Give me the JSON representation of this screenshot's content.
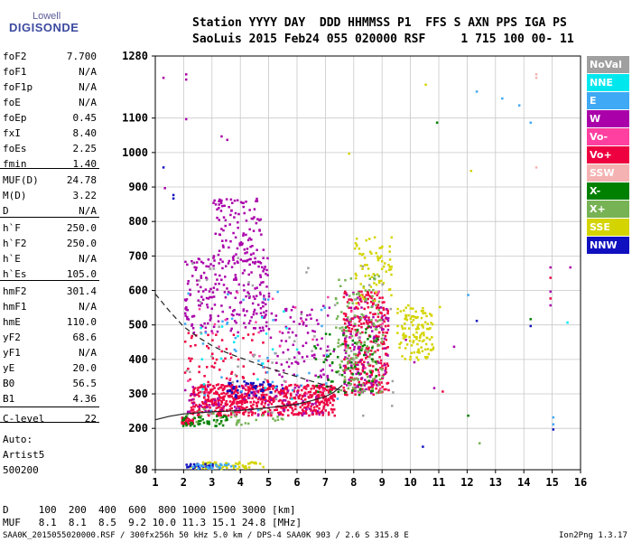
{
  "logo": {
    "line1": "Lowell",
    "line2": "DIGISONDE"
  },
  "header": {
    "line1": "Station YYYY DAY  DDD HHMMSS P1  FFS S AXN PPS IGA PS",
    "line2": "SaoLuis 2015 Feb24 055 020000 RSF     1 715 100 00- 11"
  },
  "params_group1": [
    {
      "k": "foF2",
      "v": "7.700"
    },
    {
      "k": "foF1",
      "v": "N/A"
    },
    {
      "k": "foF1p",
      "v": "N/A"
    },
    {
      "k": "foE",
      "v": "N/A"
    },
    {
      "k": "foEp",
      "v": "0.45"
    },
    {
      "k": "fxI",
      "v": "8.40"
    },
    {
      "k": "foEs",
      "v": "2.25"
    },
    {
      "k": "fmin",
      "v": "1.40"
    }
  ],
  "params_group2": [
    {
      "k": "MUF(D)",
      "v": "24.78"
    },
    {
      "k": "M(D)",
      "v": "3.22"
    },
    {
      "k": "D",
      "v": "N/A"
    }
  ],
  "params_group3": [
    {
      "k": "h`F",
      "v": "250.0"
    },
    {
      "k": "h`F2",
      "v": "250.0"
    },
    {
      "k": "h`E",
      "v": "N/A"
    },
    {
      "k": "h`Es",
      "v": "105.0"
    }
  ],
  "params_group4": [
    {
      "k": "hmF2",
      "v": "301.4"
    },
    {
      "k": "hmF1",
      "v": "N/A"
    },
    {
      "k": "hmE",
      "v": "110.0"
    },
    {
      "k": "yF2",
      "v": "68.6"
    },
    {
      "k": "yF1",
      "v": "N/A"
    },
    {
      "k": "yE",
      "v": "20.0"
    },
    {
      "k": "B0",
      "v": "56.5"
    },
    {
      "k": "B1",
      "v": "4.36"
    }
  ],
  "clevel": {
    "k": "C-level",
    "v": "22"
  },
  "auto": {
    "line1": "Auto:",
    "line2": "Artist5",
    "line3": "500200"
  },
  "legend": [
    {
      "label": "NoVal",
      "color": "#a0a0a0"
    },
    {
      "label": "NNE",
      "color": "#00e8ee"
    },
    {
      "label": "E",
      "color": "#3fa9f5"
    },
    {
      "label": "W",
      "color": "#aa00aa"
    },
    {
      "label": "Vo-",
      "color": "#ff40a0"
    },
    {
      "label": "Vo+",
      "color": "#ee0040"
    },
    {
      "label": "SSW",
      "color": "#f5b2b2"
    },
    {
      "label": "X-",
      "color": "#008000"
    },
    {
      "label": "X+",
      "color": "#77b355"
    },
    {
      "label": "SSE",
      "color": "#d4d400"
    },
    {
      "label": "NNW",
      "color": "#1010c0"
    }
  ],
  "footer": {
    "d_line": "D     100  200  400  600  800 1000 1500 3000 [km]",
    "muf_line": "MUF   8.1  8.1  8.5  9.2 10.0 11.3 15.1 24.8 [MHz]",
    "info": "SAA0K_2015055020000.RSF / 300fx256h 50 kHz 5.0 km / DPS-4 SAA0K 903 / 2.6 S 315.8 E",
    "version": "Ion2Png 1.3.17"
  },
  "chart_data": {
    "type": "scatter",
    "title": "",
    "xlabel": "",
    "ylabel": "",
    "xlim": [
      1,
      16
    ],
    "ylim": [
      80,
      1280
    ],
    "xticks": [
      "1",
      "2",
      "3",
      "4",
      "5",
      "6",
      "7",
      "8",
      "9",
      "10",
      "11",
      "12",
      "13",
      "14",
      "15",
      "16"
    ],
    "yticks": [
      "80",
      "200",
      "300",
      "400",
      "500",
      "600",
      "700",
      "800",
      "900",
      "1000",
      "1100",
      "1280"
    ],
    "grid": true,
    "legend_position": "right",
    "series": [
      {
        "name": "Vo+",
        "color": "#ee0040",
        "clusters": [
          {
            "x": [
              2.2,
              7.3
            ],
            "y": [
              240,
              330
            ],
            "n": 650
          },
          {
            "x": [
              7.6,
              9.2
            ],
            "y": [
              300,
              600
            ],
            "n": 300
          },
          {
            "x": [
              2.0,
              5.0
            ],
            "y": [
              330,
              480
            ],
            "n": 60
          },
          {
            "x": [
              1.9,
              2.3
            ],
            "y": [
              215,
              235
            ],
            "n": 30
          }
        ]
      },
      {
        "name": "W",
        "color": "#aa00aa",
        "clusters": [
          {
            "x": [
              2.0,
              5.0
            ],
            "y": [
              480,
              700
            ],
            "n": 220
          },
          {
            "x": [
              3.0,
              4.8
            ],
            "y": [
              680,
              870
            ],
            "n": 110
          },
          {
            "x": [
              5.0,
              7.3
            ],
            "y": [
              340,
              560
            ],
            "n": 90
          },
          {
            "x": [
              7.6,
              9.2
            ],
            "y": [
              300,
              600
            ],
            "n": 110
          },
          {
            "x": [
              2.0,
              7.0
            ],
            "y": [
              240,
              330
            ],
            "n": 80
          }
        ]
      },
      {
        "name": "X+",
        "color": "#77b355",
        "clusters": [
          {
            "x": [
              7.3,
              9.0
            ],
            "y": [
              300,
              650
            ],
            "n": 150
          },
          {
            "x": [
              2.0,
              5.5
            ],
            "y": [
              210,
              260
            ],
            "n": 35
          }
        ]
      },
      {
        "name": "SSE",
        "color": "#d4d400",
        "clusters": [
          {
            "x": [
              9.5,
              10.8
            ],
            "y": [
              400,
              560
            ],
            "n": 120
          },
          {
            "x": [
              8.0,
              9.3
            ],
            "y": [
              560,
              760
            ],
            "n": 70
          },
          {
            "x": [
              2.2,
              4.8
            ],
            "y": [
              85,
              105
            ],
            "n": 60
          }
        ]
      },
      {
        "name": "X-",
        "color": "#008000",
        "clusters": [
          {
            "x": [
              6.5,
              8.8
            ],
            "y": [
              300,
              500
            ],
            "n": 70
          },
          {
            "x": [
              1.9,
              3.5
            ],
            "y": [
              210,
              240
            ],
            "n": 40
          }
        ]
      },
      {
        "name": "NNW",
        "color": "#1010c0",
        "clusters": [
          {
            "x": [
              3.5,
              5.5
            ],
            "y": [
              290,
              340
            ],
            "n": 45
          },
          {
            "x": [
              2.0,
              3.0
            ],
            "y": [
              85,
              100
            ],
            "n": 25
          }
        ]
      },
      {
        "name": "E",
        "color": "#3fa9f5",
        "clusters": [
          {
            "x": [
              2.0,
              7.5
            ],
            "y": [
              250,
              600
            ],
            "n": 40
          },
          {
            "x": [
              2.2,
              3.8
            ],
            "y": [
              85,
              100
            ],
            "n": 25
          }
        ]
      },
      {
        "name": "NNE",
        "color": "#00e8ee",
        "clusters": [
          {
            "x": [
              2.5,
              6.0
            ],
            "y": [
              280,
              560
            ],
            "n": 20
          }
        ]
      },
      {
        "name": "Vo-",
        "color": "#ff40a0",
        "clusters": [
          {
            "x": [
              2.0,
              9.0
            ],
            "y": [
              300,
              600
            ],
            "n": 35
          }
        ]
      },
      {
        "name": "NoVal",
        "color": "#a0a0a0",
        "clusters": [
          {
            "x": [
              2.0,
              9.5
            ],
            "y": [
              240,
              700
            ],
            "n": 60
          }
        ]
      },
      {
        "name": "SSW",
        "color": "#f5b2b2",
        "clusters": []
      }
    ],
    "points": [
      {
        "x": 1.25,
        "y": 1220,
        "color": "#aa00aa"
      },
      {
        "x": 2.05,
        "y": 1230,
        "color": "#aa00aa"
      },
      {
        "x": 2.05,
        "y": 1215,
        "color": "#aa00aa"
      },
      {
        "x": 2.05,
        "y": 1100,
        "color": "#aa00aa"
      },
      {
        "x": 1.25,
        "y": 960,
        "color": "#1010c0"
      },
      {
        "x": 1.6,
        "y": 880,
        "color": "#1010c0"
      },
      {
        "x": 1.6,
        "y": 870,
        "color": "#1010c0"
      },
      {
        "x": 1.3,
        "y": 900,
        "color": "#aa00aa"
      },
      {
        "x": 3.3,
        "y": 1050,
        "color": "#aa00aa"
      },
      {
        "x": 3.5,
        "y": 1040,
        "color": "#aa00aa"
      },
      {
        "x": 10.5,
        "y": 1200,
        "color": "#d4d400"
      },
      {
        "x": 10.9,
        "y": 1090,
        "color": "#008000"
      },
      {
        "x": 12.3,
        "y": 1180,
        "color": "#3fa9f5"
      },
      {
        "x": 13.2,
        "y": 1160,
        "color": "#3fa9f5"
      },
      {
        "x": 13.8,
        "y": 1140,
        "color": "#3fa9f5"
      },
      {
        "x": 14.2,
        "y": 1090,
        "color": "#3fa9f5"
      },
      {
        "x": 14.4,
        "y": 1230,
        "color": "#f5b2b2"
      },
      {
        "x": 14.4,
        "y": 1220,
        "color": "#f5b2b2"
      },
      {
        "x": 14.4,
        "y": 960,
        "color": "#f5b2b2"
      },
      {
        "x": 12.1,
        "y": 950,
        "color": "#d4d400"
      },
      {
        "x": 12.0,
        "y": 590,
        "color": "#3fa9f5"
      },
      {
        "x": 12.3,
        "y": 515,
        "color": "#1010c0"
      },
      {
        "x": 11.0,
        "y": 555,
        "color": "#d4d400"
      },
      {
        "x": 11.5,
        "y": 440,
        "color": "#aa00aa"
      },
      {
        "x": 12.0,
        "y": 240,
        "color": "#008000"
      },
      {
        "x": 10.4,
        "y": 150,
        "color": "#1010c0"
      },
      {
        "x": 12.4,
        "y": 160,
        "color": "#77b355"
      },
      {
        "x": 14.2,
        "y": 520,
        "color": "#008000"
      },
      {
        "x": 14.2,
        "y": 500,
        "color": "#1010c0"
      },
      {
        "x": 14.9,
        "y": 670,
        "color": "#aa00aa"
      },
      {
        "x": 14.9,
        "y": 640,
        "color": "#ee0040"
      },
      {
        "x": 14.9,
        "y": 600,
        "color": "#aa00aa"
      },
      {
        "x": 14.9,
        "y": 580,
        "color": "#ee0040"
      },
      {
        "x": 14.9,
        "y": 560,
        "color": "#aa00aa"
      },
      {
        "x": 15.0,
        "y": 235,
        "color": "#3fa9f5"
      },
      {
        "x": 15.0,
        "y": 215,
        "color": "#3fa9f5"
      },
      {
        "x": 15.0,
        "y": 200,
        "color": "#1010c0"
      },
      {
        "x": 15.6,
        "y": 670,
        "color": "#aa00aa"
      },
      {
        "x": 15.5,
        "y": 510,
        "color": "#00e8ee"
      },
      {
        "x": 10.1,
        "y": 395,
        "color": "#aa00aa"
      },
      {
        "x": 10.8,
        "y": 320,
        "color": "#aa00aa"
      },
      {
        "x": 11.1,
        "y": 310,
        "color": "#ee0040"
      },
      {
        "x": 9.8,
        "y": 460,
        "color": "#aa00aa"
      },
      {
        "x": 7.8,
        "y": 1000,
        "color": "#d4d400"
      }
    ],
    "curves": [
      {
        "name": "profile-solid",
        "style": "solid",
        "x": [
          1.0,
          1.5,
          2.0,
          3.0,
          4.0,
          5.0,
          6.0,
          6.5,
          7.0,
          7.3,
          7.6
        ],
        "y": [
          225,
          235,
          242,
          248,
          252,
          260,
          270,
          280,
          292,
          305,
          325
        ]
      },
      {
        "name": "profile-dashed",
        "style": "dashed",
        "x": [
          1.0,
          1.5,
          2.0,
          2.5,
          3.0,
          3.5,
          4.0,
          4.5,
          5.0,
          5.5,
          6.0,
          6.5,
          7.0,
          7.5,
          7.7
        ],
        "y": [
          590,
          540,
          495,
          465,
          440,
          420,
          405,
          390,
          375,
          362,
          350,
          337,
          325,
          312,
          305
        ]
      }
    ]
  }
}
